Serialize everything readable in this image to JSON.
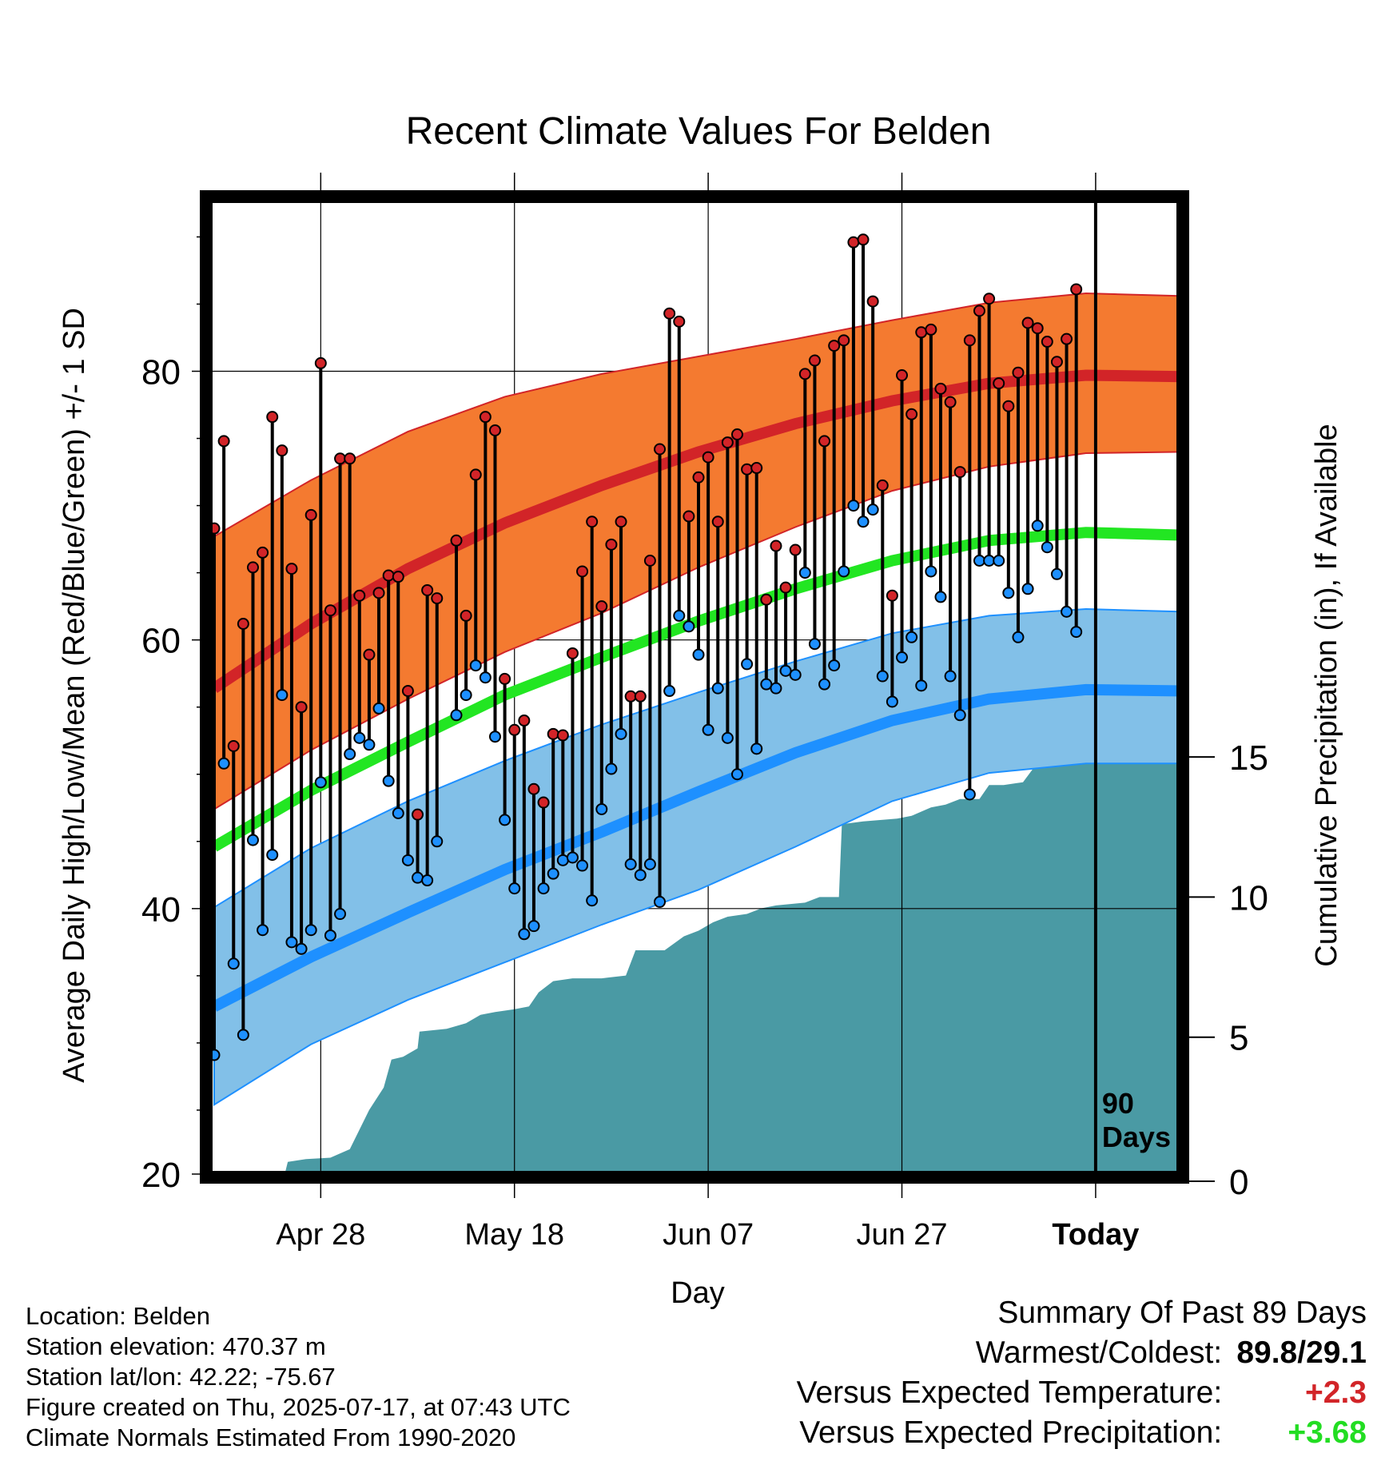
{
  "chart_data": {
    "type": "line",
    "title": "Recent Climate Values For Belden",
    "xlabel": "Day",
    "ylabel": "Average Daily High/Low/Mean (Red/Blue/Green) +/- 1 SD",
    "y2label": "Cumulative Precipitation (in), If Available",
    "ylim": [
      20,
      93
    ],
    "y2lim": [
      0,
      35
    ],
    "yticks": [
      20,
      40,
      60,
      80
    ],
    "y2ticks": [
      0,
      5,
      10,
      15
    ],
    "x_tick_labels": [
      "Apr 28",
      "May 18",
      "Jun 07",
      "Jun 27",
      "Today"
    ],
    "x_tick_days": [
      11,
      31,
      51,
      71,
      91
    ],
    "xlim": [
      0,
      100
    ],
    "today_marker": {
      "day": 91,
      "label_line1": "90",
      "label_line2": "Days"
    },
    "grid": true,
    "colors": {
      "high": "#d22428",
      "high_band": "#f47a30",
      "low": "#1e90ff",
      "low_band": "#82c0e8",
      "mean": "#22e622",
      "precip": "#4a9aa4"
    },
    "normal_high_mean": [
      [
        0,
        56.4
      ],
      [
        10,
        61.2
      ],
      [
        20,
        65.3
      ],
      [
        30,
        68.7
      ],
      [
        40,
        71.5
      ],
      [
        50,
        74.0
      ],
      [
        60,
        76.1
      ],
      [
        70,
        77.8
      ],
      [
        80,
        79.1
      ],
      [
        90,
        79.7
      ],
      [
        100,
        79.6
      ]
    ],
    "normal_high_upper": [
      [
        0,
        67.7
      ],
      [
        10,
        71.9
      ],
      [
        20,
        75.5
      ],
      [
        30,
        78.1
      ],
      [
        40,
        79.8
      ],
      [
        50,
        81.1
      ],
      [
        60,
        82.4
      ],
      [
        70,
        83.8
      ],
      [
        80,
        85.1
      ],
      [
        90,
        85.8
      ],
      [
        100,
        85.6
      ]
    ],
    "normal_high_lower": [
      [
        0,
        47.4
      ],
      [
        10,
        51.8
      ],
      [
        20,
        55.6
      ],
      [
        30,
        59.1
      ],
      [
        40,
        62.0
      ],
      [
        50,
        65.4
      ],
      [
        60,
        68.4
      ],
      [
        70,
        71.1
      ],
      [
        80,
        72.9
      ],
      [
        90,
        73.9
      ],
      [
        100,
        74.0
      ]
    ],
    "normal_low_mean": [
      [
        0,
        32.7
      ],
      [
        10,
        36.4
      ],
      [
        20,
        39.7
      ],
      [
        30,
        42.9
      ],
      [
        40,
        45.7
      ],
      [
        50,
        48.7
      ],
      [
        60,
        51.6
      ],
      [
        70,
        54.0
      ],
      [
        80,
        55.6
      ],
      [
        90,
        56.3
      ],
      [
        100,
        56.2
      ]
    ],
    "normal_low_upper": [
      [
        0,
        40.1
      ],
      [
        10,
        44.5
      ],
      [
        20,
        48.0
      ],
      [
        30,
        51.0
      ],
      [
        40,
        53.7
      ],
      [
        50,
        56.1
      ],
      [
        60,
        58.4
      ],
      [
        70,
        60.5
      ],
      [
        80,
        61.8
      ],
      [
        90,
        62.3
      ],
      [
        100,
        62.1
      ]
    ],
    "normal_low_lower": [
      [
        0,
        25.4
      ],
      [
        10,
        29.9
      ],
      [
        20,
        33.2
      ],
      [
        30,
        36.0
      ],
      [
        40,
        38.8
      ],
      [
        50,
        41.4
      ],
      [
        60,
        44.6
      ],
      [
        70,
        48.0
      ],
      [
        80,
        50.1
      ],
      [
        90,
        50.8
      ],
      [
        100,
        50.8
      ]
    ],
    "normal_mean": [
      [
        0,
        44.6
      ],
      [
        10,
        48.8
      ],
      [
        20,
        52.4
      ],
      [
        30,
        55.9
      ],
      [
        40,
        58.7
      ],
      [
        50,
        61.4
      ],
      [
        60,
        63.8
      ],
      [
        70,
        65.9
      ],
      [
        80,
        67.4
      ],
      [
        90,
        68.0
      ],
      [
        100,
        67.8
      ]
    ],
    "daily": [
      {
        "day": 0,
        "high": 68.3,
        "low": 29.1
      },
      {
        "day": 1,
        "high": 74.8,
        "low": 50.8
      },
      {
        "day": 2,
        "high": 52.1,
        "low": 35.9
      },
      {
        "day": 3,
        "high": 61.2,
        "low": 30.6
      },
      {
        "day": 4,
        "high": 65.4,
        "low": 45.1
      },
      {
        "day": 5,
        "high": 66.5,
        "low": 38.4
      },
      {
        "day": 6,
        "high": 76.6,
        "low": 44.0
      },
      {
        "day": 7,
        "high": 74.1,
        "low": 55.9
      },
      {
        "day": 8,
        "high": 65.3,
        "low": 37.5
      },
      {
        "day": 9,
        "high": 55.0,
        "low": 37.0
      },
      {
        "day": 10,
        "high": 69.3,
        "low": 38.4
      },
      {
        "day": 11,
        "high": 80.6,
        "low": 49.4
      },
      {
        "day": 12,
        "high": 62.2,
        "low": 38.0
      },
      {
        "day": 13,
        "high": 73.5,
        "low": 39.6
      },
      {
        "day": 14,
        "high": 73.5,
        "low": 51.5
      },
      {
        "day": 15,
        "high": 63.3,
        "low": 52.7
      },
      {
        "day": 16,
        "high": 58.9,
        "low": 52.2
      },
      {
        "day": 17,
        "high": 63.5,
        "low": 54.9
      },
      {
        "day": 18,
        "high": 64.8,
        "low": 49.5
      },
      {
        "day": 19,
        "high": 64.7,
        "low": 47.1
      },
      {
        "day": 20,
        "high": 56.2,
        "low": 43.6
      },
      {
        "day": 21,
        "high": 47.0,
        "low": 42.3
      },
      {
        "day": 22,
        "high": 63.7,
        "low": 42.1
      },
      {
        "day": 23,
        "high": 63.1,
        "low": 45.0
      },
      {
        "day": 25,
        "high": 67.4,
        "low": 54.4
      },
      {
        "day": 26,
        "high": 61.8,
        "low": 55.9
      },
      {
        "day": 27,
        "high": 72.3,
        "low": 58.1
      },
      {
        "day": 28,
        "high": 76.6,
        "low": 57.2
      },
      {
        "day": 29,
        "high": 75.6,
        "low": 52.8
      },
      {
        "day": 30,
        "high": 57.1,
        "low": 46.6
      },
      {
        "day": 31,
        "high": 53.3,
        "low": 41.5
      },
      {
        "day": 32,
        "high": 54.0,
        "low": 38.1
      },
      {
        "day": 33,
        "high": 48.9,
        "low": 38.7
      },
      {
        "day": 34,
        "high": 47.9,
        "low": 41.5
      },
      {
        "day": 35,
        "high": 53.0,
        "low": 42.6
      },
      {
        "day": 36,
        "high": 52.9,
        "low": 43.6
      },
      {
        "day": 37,
        "high": 59.0,
        "low": 43.8
      },
      {
        "day": 38,
        "high": 65.1,
        "low": 43.2
      },
      {
        "day": 39,
        "high": 68.8,
        "low": 40.6
      },
      {
        "day": 40,
        "high": 62.5,
        "low": 47.4
      },
      {
        "day": 41,
        "high": 67.1,
        "low": 50.4
      },
      {
        "day": 42,
        "high": 68.8,
        "low": 53.0
      },
      {
        "day": 43,
        "high": 55.8,
        "low": 43.3
      },
      {
        "day": 44,
        "high": 55.8,
        "low": 42.5
      },
      {
        "day": 45,
        "high": 65.9,
        "low": 43.3
      },
      {
        "day": 46,
        "high": 74.2,
        "low": 40.5
      },
      {
        "day": 47,
        "high": 84.3,
        "low": 56.2
      },
      {
        "day": 48,
        "high": 83.7,
        "low": 61.8
      },
      {
        "day": 49,
        "high": 69.2,
        "low": 61.0
      },
      {
        "day": 50,
        "high": 72.1,
        "low": 58.9
      },
      {
        "day": 51,
        "high": 73.6,
        "low": 53.3
      },
      {
        "day": 52,
        "high": 68.8,
        "low": 56.4
      },
      {
        "day": 53,
        "high": 74.7,
        "low": 52.7
      },
      {
        "day": 54,
        "high": 75.3,
        "low": 50.0
      },
      {
        "day": 55,
        "high": 72.7,
        "low": 58.2
      },
      {
        "day": 56,
        "high": 72.8,
        "low": 51.9
      },
      {
        "day": 57,
        "high": 63.0,
        "low": 56.7
      },
      {
        "day": 58,
        "high": 67.0,
        "low": 56.4
      },
      {
        "day": 59,
        "high": 63.9,
        "low": 57.7
      },
      {
        "day": 60,
        "high": 66.7,
        "low": 57.4
      },
      {
        "day": 61,
        "high": 79.8,
        "low": 65.0
      },
      {
        "day": 62,
        "high": 80.8,
        "low": 59.7
      },
      {
        "day": 63,
        "high": 74.8,
        "low": 56.7
      },
      {
        "day": 64,
        "high": 81.9,
        "low": 58.1
      },
      {
        "day": 65,
        "high": 82.3,
        "low": 65.1
      },
      {
        "day": 66,
        "high": 89.6,
        "low": 70.0
      },
      {
        "day": 67,
        "high": 89.8,
        "low": 68.8
      },
      {
        "day": 68,
        "high": 85.2,
        "low": 69.7
      },
      {
        "day": 69,
        "high": 71.5,
        "low": 57.3
      },
      {
        "day": 70,
        "high": 63.3,
        "low": 55.4
      },
      {
        "day": 71,
        "high": 79.7,
        "low": 58.7
      },
      {
        "day": 72,
        "high": 76.8,
        "low": 60.2
      },
      {
        "day": 73,
        "high": 82.9,
        "low": 56.6
      },
      {
        "day": 74,
        "high": 83.1,
        "low": 65.1
      },
      {
        "day": 75,
        "high": 78.7,
        "low": 63.2
      },
      {
        "day": 76,
        "high": 77.7,
        "low": 57.3
      },
      {
        "day": 77,
        "high": 72.5,
        "low": 54.4
      },
      {
        "day": 78,
        "high": 82.3,
        "low": 48.5
      },
      {
        "day": 79,
        "high": 84.5,
        "low": 65.9
      },
      {
        "day": 80,
        "high": 85.4,
        "low": 65.9
      },
      {
        "day": 81,
        "high": 79.1,
        "low": 65.9
      },
      {
        "day": 82,
        "high": 77.4,
        "low": 63.5
      },
      {
        "day": 83,
        "high": 79.9,
        "low": 60.2
      },
      {
        "day": 84,
        "high": 83.6,
        "low": 63.8
      },
      {
        "day": 85,
        "high": 83.2,
        "low": 68.5
      },
      {
        "day": 86,
        "high": 82.2,
        "low": 66.9
      },
      {
        "day": 87,
        "high": 80.7,
        "low": 64.9
      },
      {
        "day": 88,
        "high": 82.4,
        "low": 62.1
      },
      {
        "day": 89,
        "high": 86.1,
        "low": 60.6
      }
    ],
    "cumulative_precip": [
      [
        0,
        0.0
      ],
      [
        7.2,
        0.0
      ],
      [
        7.6,
        0.55
      ],
      [
        9.5,
        0.65
      ],
      [
        12,
        0.7
      ],
      [
        14,
        1.0
      ],
      [
        16,
        2.4
      ],
      [
        17.5,
        3.2
      ],
      [
        18.3,
        4.2
      ],
      [
        19.5,
        4.3
      ],
      [
        21,
        4.6
      ],
      [
        21.2,
        5.2
      ],
      [
        24,
        5.3
      ],
      [
        26,
        5.5
      ],
      [
        27.5,
        5.8
      ],
      [
        29,
        5.9
      ],
      [
        31,
        6.0
      ],
      [
        32.5,
        6.1
      ],
      [
        33.5,
        6.6
      ],
      [
        35,
        7.0
      ],
      [
        37,
        7.1
      ],
      [
        40,
        7.1
      ],
      [
        42.5,
        7.2
      ],
      [
        43.5,
        8.1
      ],
      [
        46.5,
        8.1
      ],
      [
        48.5,
        8.6
      ],
      [
        50,
        8.8
      ],
      [
        51.5,
        9.1
      ],
      [
        53,
        9.3
      ],
      [
        55,
        9.4
      ],
      [
        56.5,
        9.6
      ],
      [
        58,
        9.7
      ],
      [
        61,
        9.8
      ],
      [
        62.5,
        10.0
      ],
      [
        64.5,
        10.0
      ],
      [
        64.8,
        12.6
      ],
      [
        67,
        12.7
      ],
      [
        70.5,
        12.8
      ],
      [
        72,
        12.9
      ],
      [
        74,
        13.2
      ],
      [
        75.5,
        13.3
      ],
      [
        77,
        13.5
      ],
      [
        79,
        13.5
      ],
      [
        80,
        14.0
      ],
      [
        81.5,
        14.0
      ],
      [
        83.5,
        14.1
      ],
      [
        85,
        14.8
      ],
      [
        85.5,
        15.4
      ],
      [
        86.2,
        15.6
      ],
      [
        90,
        15.6
      ],
      [
        100,
        15.6
      ]
    ],
    "location": "Location: Belden",
    "elevation": "Station elevation: 470.37 m",
    "latlon": "Station lat/lon: 42.22; -75.67",
    "created": "Figure created on Thu, 2025-07-17, at 07:43 UTC",
    "normals": "Climate Normals Estimated From 1990-2020",
    "summary": {
      "heading": "Summary Of Past 89 Days",
      "warm_cold_label": "Warmest/Coldest:",
      "warm_cold_value": "89.8/29.1",
      "temp_label": "Versus Expected Temperature:",
      "temp_value": "+2.3",
      "temp_color": "#d22428",
      "precip_label": "Versus Expected Precipitation:",
      "precip_value": "+3.68",
      "precip_color": "#22dd22"
    }
  }
}
